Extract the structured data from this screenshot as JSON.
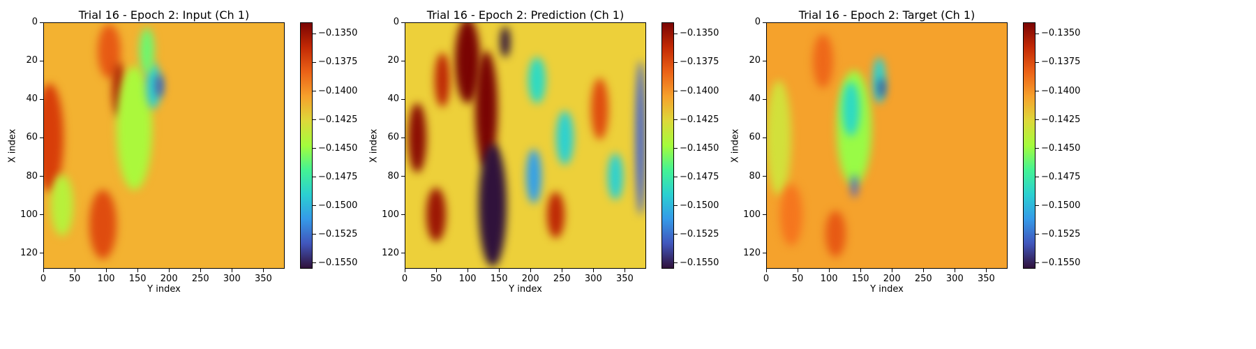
{
  "chart_data": [
    {
      "type": "heatmap",
      "title": "Trial 16 - Epoch 2: Input (Ch 1)",
      "xlabel": "Y index",
      "ylabel": "X index",
      "x_ticks": [
        "0",
        "50",
        "100",
        "150",
        "200",
        "250",
        "300",
        "350"
      ],
      "y_ticks": [
        "0",
        "20",
        "40",
        "60",
        "80",
        "100",
        "120"
      ],
      "xlim": [
        0,
        384
      ],
      "ylim": [
        128,
        0
      ],
      "colorbar": {
        "colormap": "turbo",
        "range": [
          -0.1555,
          -0.134
        ],
        "ticks": [
          "−0.1350",
          "−0.1375",
          "−0.1400",
          "−0.1425",
          "−0.1450",
          "−0.1475",
          "−0.1500",
          "−0.1525",
          "−0.1550"
        ]
      },
      "background_value": -0.141,
      "features": [
        {
          "x": 10,
          "y": 60,
          "rx": 22,
          "ry": 28,
          "v": -0.137
        },
        {
          "x": 95,
          "y": 105,
          "rx": 22,
          "ry": 18,
          "v": -0.1375
        },
        {
          "x": 105,
          "y": 15,
          "rx": 18,
          "ry": 14,
          "v": -0.138
        },
        {
          "x": 120,
          "y": 35,
          "rx": 10,
          "ry": 14,
          "v": -0.1355
        },
        {
          "x": 30,
          "y": 95,
          "rx": 18,
          "ry": 16,
          "v": -0.144
        },
        {
          "x": 145,
          "y": 55,
          "rx": 28,
          "ry": 32,
          "v": -0.1445
        },
        {
          "x": 175,
          "y": 33,
          "rx": 12,
          "ry": 12,
          "v": -0.149
        },
        {
          "x": 185,
          "y": 33,
          "rx": 6,
          "ry": 6,
          "v": -0.1535
        },
        {
          "x": 165,
          "y": 15,
          "rx": 12,
          "ry": 12,
          "v": -0.146
        }
      ]
    },
    {
      "type": "heatmap",
      "title": "Trial 16 - Epoch 2: Prediction (Ch 1)",
      "xlabel": "Y index",
      "ylabel": "X index",
      "x_ticks": [
        "0",
        "50",
        "100",
        "150",
        "200",
        "250",
        "300",
        "350"
      ],
      "y_ticks": [
        "0",
        "20",
        "40",
        "60",
        "80",
        "100",
        "120"
      ],
      "xlim": [
        0,
        384
      ],
      "ylim": [
        128,
        0
      ],
      "colorbar": {
        "colormap": "turbo",
        "range": [
          -0.1555,
          -0.134
        ],
        "ticks": [
          "−0.1350",
          "−0.1375",
          "−0.1400",
          "−0.1425",
          "−0.1450",
          "−0.1475",
          "−0.1500",
          "−0.1525",
          "−0.1550"
        ]
      },
      "background_value": -0.142,
      "features": [
        {
          "x": 100,
          "y": 20,
          "rx": 20,
          "ry": 22,
          "v": -0.134
        },
        {
          "x": 130,
          "y": 45,
          "rx": 18,
          "ry": 30,
          "v": -0.134
        },
        {
          "x": 140,
          "y": 95,
          "rx": 22,
          "ry": 32,
          "v": -0.1555
        },
        {
          "x": 20,
          "y": 60,
          "rx": 14,
          "ry": 18,
          "v": -0.1345
        },
        {
          "x": 50,
          "y": 100,
          "rx": 16,
          "ry": 14,
          "v": -0.135
        },
        {
          "x": 60,
          "y": 30,
          "rx": 12,
          "ry": 14,
          "v": -0.136
        },
        {
          "x": 210,
          "y": 30,
          "rx": 14,
          "ry": 12,
          "v": -0.1485
        },
        {
          "x": 205,
          "y": 80,
          "rx": 12,
          "ry": 14,
          "v": -0.151
        },
        {
          "x": 255,
          "y": 60,
          "rx": 14,
          "ry": 14,
          "v": -0.149
        },
        {
          "x": 240,
          "y": 100,
          "rx": 14,
          "ry": 12,
          "v": -0.136
        },
        {
          "x": 310,
          "y": 45,
          "rx": 14,
          "ry": 16,
          "v": -0.1375
        },
        {
          "x": 335,
          "y": 80,
          "rx": 12,
          "ry": 12,
          "v": -0.149
        },
        {
          "x": 375,
          "y": 60,
          "rx": 8,
          "ry": 40,
          "v": -0.153
        },
        {
          "x": 160,
          "y": 10,
          "rx": 8,
          "ry": 8,
          "v": -0.1555
        }
      ]
    },
    {
      "type": "heatmap",
      "title": "Trial 16 - Epoch 2: Target (Ch 1)",
      "xlabel": "Y index",
      "ylabel": "X index",
      "x_ticks": [
        "0",
        "50",
        "100",
        "150",
        "200",
        "250",
        "300",
        "350"
      ],
      "y_ticks": [
        "0",
        "20",
        "40",
        "60",
        "80",
        "100",
        "120"
      ],
      "xlim": [
        0,
        384
      ],
      "ylim": [
        128,
        0
      ],
      "colorbar": {
        "colormap": "turbo",
        "range": [
          -0.1555,
          -0.134
        ],
        "ticks": [
          "−0.1350",
          "−0.1375",
          "−0.1400",
          "−0.1425",
          "−0.1450",
          "−0.1475",
          "−0.1500",
          "−0.1525",
          "−0.1550"
        ]
      },
      "background_value": -0.1405,
      "features": [
        {
          "x": 20,
          "y": 60,
          "rx": 20,
          "ry": 30,
          "v": -0.143
        },
        {
          "x": 40,
          "y": 100,
          "rx": 18,
          "ry": 16,
          "v": -0.139
        },
        {
          "x": 90,
          "y": 20,
          "rx": 16,
          "ry": 14,
          "v": -0.1385
        },
        {
          "x": 110,
          "y": 110,
          "rx": 16,
          "ry": 12,
          "v": -0.138
        },
        {
          "x": 140,
          "y": 55,
          "rx": 28,
          "ry": 30,
          "v": -0.145
        },
        {
          "x": 135,
          "y": 45,
          "rx": 14,
          "ry": 14,
          "v": -0.1485
        },
        {
          "x": 180,
          "y": 30,
          "rx": 10,
          "ry": 12,
          "v": -0.149
        },
        {
          "x": 184,
          "y": 34,
          "rx": 5,
          "ry": 5,
          "v": -0.154
        },
        {
          "x": 140,
          "y": 85,
          "rx": 5,
          "ry": 6,
          "v": -0.153
        }
      ]
    }
  ]
}
